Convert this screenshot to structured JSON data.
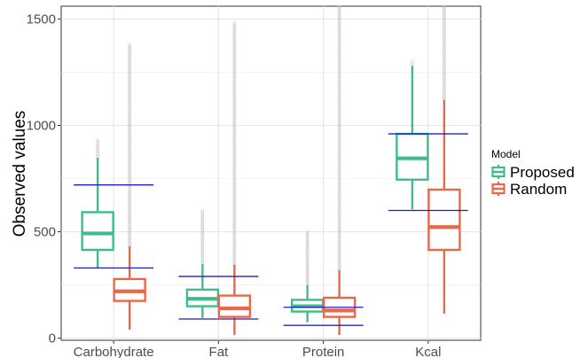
{
  "chart_data": {
    "type": "box",
    "title": "",
    "xlabel": "",
    "ylabel": "Observed values",
    "ylim": [
      -10,
      1560
    ],
    "yticks": [
      0,
      500,
      1000,
      1500
    ],
    "ytick_labels": [
      "0",
      "500",
      "1000",
      "1500"
    ],
    "grid": true,
    "legend": {
      "title": "Model",
      "placement": "right"
    },
    "categories": [
      "Carbohydrate",
      "Fat",
      "Protein",
      "Kcal"
    ],
    "series": [
      {
        "name": "Proposed",
        "color": "#3dbd8a",
        "boxes": [
          {
            "whisker_low": 330,
            "q1": 415,
            "median": 492,
            "q3": 592,
            "whisker_high": 848,
            "outlier_range": [
              848,
              930
            ]
          },
          {
            "whisker_low": 95,
            "q1": 150,
            "median": 185,
            "q3": 228,
            "whisker_high": 348,
            "outlier_range": [
              348,
              600
            ]
          },
          {
            "whisker_low": 75,
            "q1": 125,
            "median": 150,
            "q3": 180,
            "whisker_high": 250,
            "outlier_range": [
              250,
              500
            ]
          },
          {
            "whisker_low": 605,
            "q1": 745,
            "median": 845,
            "q3": 960,
            "whisker_high": 1280,
            "outlier_range": [
              1280,
              1300
            ]
          }
        ]
      },
      {
        "name": "Random",
        "color": "#e8694a",
        "boxes": [
          {
            "whisker_low": 40,
            "q1": 175,
            "median": 220,
            "q3": 278,
            "whisker_high": 432,
            "outlier_range": [
              432,
              1380
            ]
          },
          {
            "whisker_low": 15,
            "q1": 100,
            "median": 140,
            "q3": 200,
            "whisker_high": 345,
            "outlier_range": [
              345,
              1480
            ]
          },
          {
            "whisker_low": 15,
            "q1": 100,
            "median": 130,
            "q3": 190,
            "whisker_high": 320,
            "outlier_range": [
              320,
              1560
            ]
          },
          {
            "whisker_low": 115,
            "q1": 415,
            "median": 522,
            "q3": 698,
            "whisker_high": 1120,
            "outlier_range": [
              1120,
              1560
            ]
          }
        ]
      }
    ],
    "reference_lines": {
      "color": "#1f1fc8",
      "ranges": [
        {
          "category": "Carbohydrate",
          "low": 330,
          "high": 720
        },
        {
          "category": "Fat",
          "low": 90,
          "high": 290
        },
        {
          "category": "Protein",
          "low": 60,
          "high": 145
        },
        {
          "category": "Kcal",
          "low": 600,
          "high": 960
        }
      ]
    }
  }
}
